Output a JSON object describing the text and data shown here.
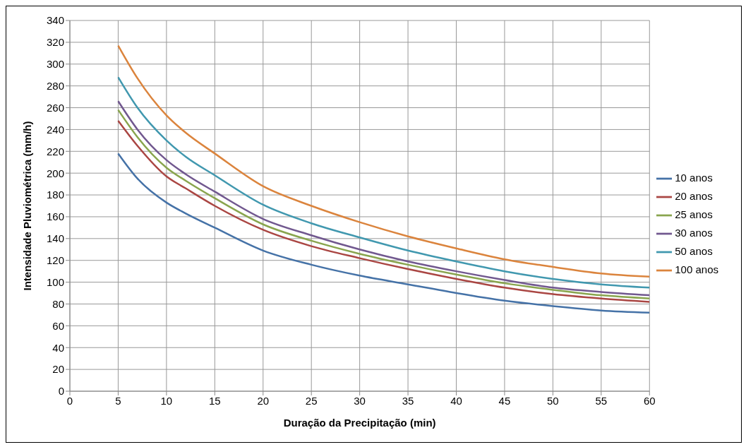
{
  "chart_data": {
    "type": "line",
    "xlabel": "Duração da Precipitação (min)",
    "ylabel": "Intensidade Pluviométrica (mm/h)",
    "x": [
      5,
      7,
      10,
      12,
      15,
      20,
      25,
      30,
      35,
      40,
      45,
      50,
      55,
      60
    ],
    "series": [
      {
        "name": "10 anos",
        "color": "#4572a7",
        "values": [
          218,
          195,
          173,
          163,
          150,
          129,
          116,
          106,
          98,
          90,
          83,
          78,
          74,
          72
        ]
      },
      {
        "name": "20 anos",
        "color": "#aa4643",
        "values": [
          248,
          225,
          197,
          186,
          170,
          148,
          133,
          122,
          112,
          103,
          95,
          89,
          85,
          82
        ]
      },
      {
        "name": "25 anos",
        "color": "#89a54e",
        "values": [
          258,
          233,
          205,
          193,
          177,
          153,
          138,
          126,
          116,
          107,
          99,
          93,
          88,
          85
        ]
      },
      {
        "name": "30 anos",
        "color": "#71588f",
        "values": [
          266,
          240,
          212,
          199,
          183,
          158,
          143,
          130,
          119,
          110,
          102,
          95,
          91,
          88
        ]
      },
      {
        "name": "50 anos",
        "color": "#4198af",
        "values": [
          288,
          260,
          230,
          215,
          198,
          171,
          154,
          141,
          129,
          119,
          110,
          103,
          98,
          95
        ]
      },
      {
        "name": "100 anos",
        "color": "#db843d",
        "values": [
          317,
          287,
          253,
          237,
          218,
          188,
          170,
          155,
          142,
          131,
          121,
          114,
          108,
          105
        ]
      }
    ],
    "xlim": [
      0,
      60
    ],
    "xticks": [
      0,
      5,
      10,
      15,
      20,
      25,
      30,
      35,
      40,
      45,
      50,
      55,
      60
    ],
    "ylim": [
      0,
      340
    ],
    "yticks": [
      0,
      20,
      40,
      60,
      80,
      100,
      120,
      140,
      160,
      180,
      200,
      220,
      240,
      260,
      280,
      300,
      320,
      340
    ],
    "grid": true,
    "legend": "right",
    "marker": "none",
    "line_style": "solid"
  }
}
